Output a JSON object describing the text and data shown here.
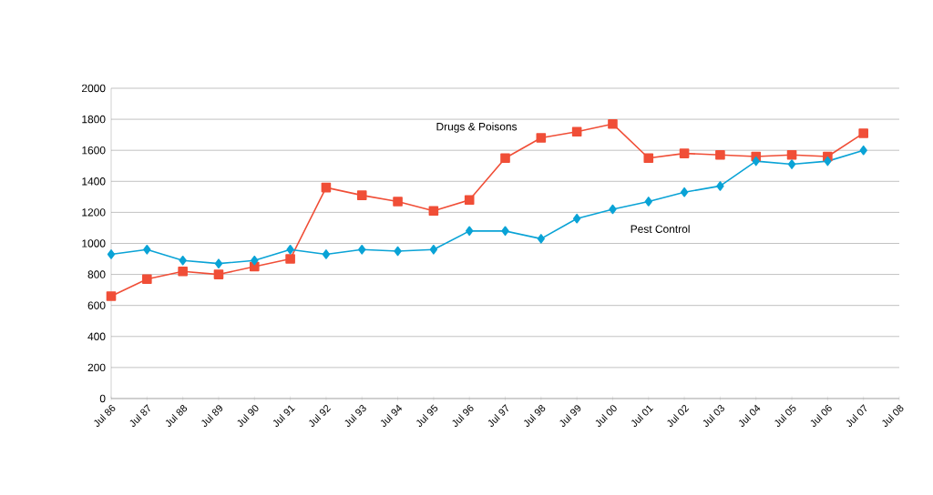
{
  "chart_data": {
    "type": "line",
    "categories": [
      "Jul 86",
      "Jul 87",
      "Jul 88",
      "Jul 89",
      "Jul 90",
      "Jul 91",
      "Jul 92",
      "Jul 93",
      "Jul 94",
      "Jul 95",
      "Jul 96",
      "Jul 97",
      "Jul 98",
      "Jul 99",
      "Jul 00",
      "Jul 01",
      "Jul 02",
      "Jul 03",
      "Jul 04",
      "Jul 05",
      "Jul 06",
      "Jul 07",
      "Jul 08"
    ],
    "series": [
      {
        "name": "Drugs & Poisons",
        "color": "#f04e37",
        "marker": "square",
        "values": [
          660,
          770,
          820,
          800,
          850,
          900,
          1360,
          1310,
          1270,
          1210,
          1280,
          1550,
          1680,
          1720,
          1770,
          1550,
          1580,
          1570,
          1560,
          1570,
          1560,
          1710,
          null
        ]
      },
      {
        "name": "Pest Control",
        "color": "#0aa3d6",
        "marker": "diamond",
        "values": [
          930,
          960,
          890,
          870,
          890,
          960,
          930,
          960,
          950,
          960,
          1080,
          1080,
          1030,
          1160,
          1220,
          1270,
          1330,
          1370,
          1530,
          1510,
          1530,
          1600,
          null
        ]
      }
    ],
    "ylim": [
      0,
      2000
    ],
    "yticks": [
      0,
      200,
      400,
      600,
      800,
      1000,
      1200,
      1400,
      1600,
      1800,
      2000
    ],
    "grid": "y",
    "legend": false,
    "line_style": "solid"
  }
}
